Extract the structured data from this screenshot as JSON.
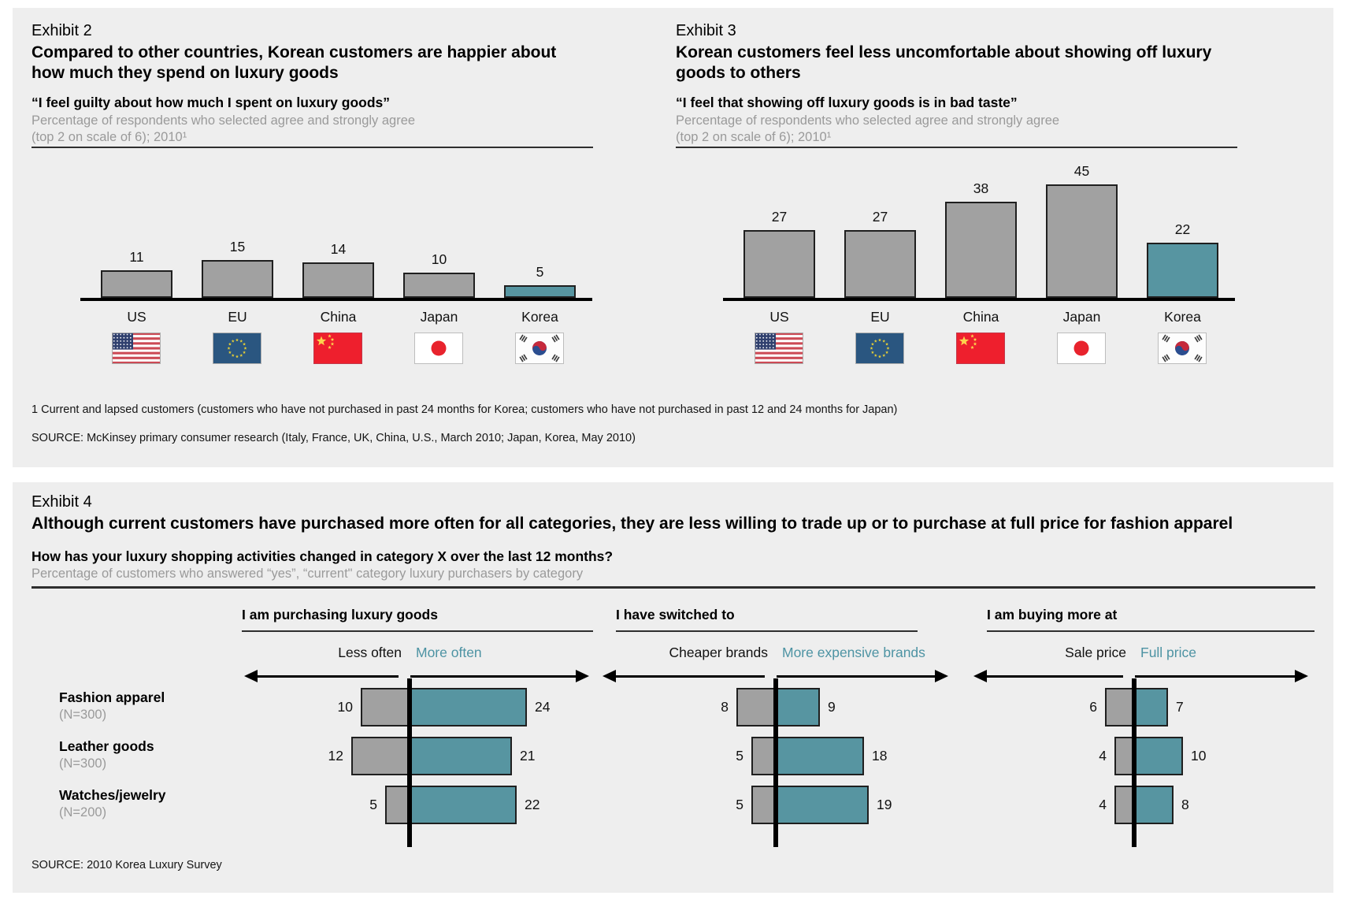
{
  "page": {
    "background": "#ffffff",
    "panel_background": "#eeeeee"
  },
  "colors": {
    "teal_accent": "#5795a1",
    "gray_bar": "#a1a1a1",
    "gray_text": "#9a9a9a",
    "teal_text": "#4d93a3"
  },
  "exhibit2": {
    "label": "Exhibit 2",
    "title": "Compared to other countries, Korean customers are happier about how much they spend on luxury goods",
    "quote": "“I feel guilty about how much I spent on luxury goods”",
    "subtitle_line1": "Percentage of respondents who selected agree and strongly agree",
    "subtitle_line2": "(top 2 on scale of 6); 2010¹"
  },
  "exhibit3": {
    "label": "Exhibit 3",
    "title": "Korean customers feel less uncomfortable about showing off luxury goods to others",
    "quote": "“I feel that showing off luxury goods is in bad taste”",
    "subtitle_line1": "Percentage of respondents who selected agree and strongly agree",
    "subtitle_line2": "(top 2 on scale of 6); 2010¹"
  },
  "footnote": "1 Current and lapsed customers (customers who have not purchased in past 24 months for Korea; customers who have not purchased in past 12 and 24 months for Japan)",
  "source_top": "SOURCE: McKinsey primary consumer research (Italy, France, UK, China, U.S., March 2010; Japan, Korea, May 2010)",
  "exhibit4": {
    "label": "Exhibit 4",
    "title": "Although current customers have purchased more often for all categories, they are less willing to trade up or to purchase at full price for fashion apparel",
    "question": "How has your luxury shopping activities changed in category X over the last 12 months?",
    "subtitle": "Percentage of customers who answered “yes”, “current\" category luxury purchasers by category",
    "groups": [
      {
        "header": "I am purchasing luxury goods",
        "left_label": "Less often",
        "right_label": "More often"
      },
      {
        "header": "I have switched to",
        "left_label": "Cheaper brands",
        "right_label": "More expensive brands"
      },
      {
        "header": "I am buying more at",
        "left_label": "Sale price",
        "right_label": "Full price"
      }
    ],
    "rows": [
      {
        "name": "Fashion apparel",
        "n": "(N=300)",
        "values": [
          [
            10,
            24
          ],
          [
            8,
            9
          ],
          [
            6,
            7
          ]
        ]
      },
      {
        "name": "Leather goods",
        "n": "(N=300)",
        "values": [
          [
            12,
            21
          ],
          [
            5,
            18
          ],
          [
            4,
            10
          ]
        ]
      },
      {
        "name": "Watches/jewelry",
        "n": "(N=200)",
        "values": [
          [
            5,
            22
          ],
          [
            5,
            19
          ],
          [
            4,
            8
          ]
        ]
      }
    ]
  },
  "source_bottom": "SOURCE: 2010 Korea Luxury Survey",
  "chart_data": [
    {
      "type": "bar",
      "exhibit": "Exhibit 2",
      "title": "“I feel guilty about how much I spent on luxury goods”",
      "subtitle": "Percentage of respondents who selected agree and strongly agree (top 2 on scale of 6); 2010",
      "categories": [
        "US",
        "EU",
        "China",
        "Japan",
        "Korea"
      ],
      "values": [
        11,
        15,
        14,
        10,
        5
      ],
      "highlight": "Korea",
      "bar_color": "#a1a1a1",
      "highlight_color": "#5795a1",
      "flags": [
        "us-flag-icon",
        "eu-flag-icon",
        "china-flag-icon",
        "japan-flag-icon",
        "korea-flag-icon"
      ],
      "data_labels": true,
      "axis_style": "baseline-only",
      "ylim": [
        0,
        50
      ]
    },
    {
      "type": "bar",
      "exhibit": "Exhibit 3",
      "title": "“I feel that showing off luxury goods is in bad taste”",
      "subtitle": "Percentage of respondents who selected agree and strongly agree (top 2 on scale of 6); 2010",
      "categories": [
        "US",
        "EU",
        "China",
        "Japan",
        "Korea"
      ],
      "values": [
        27,
        27,
        38,
        45,
        22
      ],
      "highlight": "Korea",
      "bar_color": "#a1a1a1",
      "highlight_color": "#5795a1",
      "flags": [
        "us-flag-icon",
        "eu-flag-icon",
        "china-flag-icon",
        "japan-flag-icon",
        "korea-flag-icon"
      ],
      "data_labels": true,
      "axis_style": "baseline-only",
      "ylim": [
        0,
        50
      ]
    },
    {
      "type": "bar",
      "subtype": "diverging",
      "exhibit": "Exhibit 4",
      "title": "How has your luxury shopping activities changed in category X over the last 12 months?",
      "categories": [
        "Fashion apparel (N=300)",
        "Leather goods (N=300)",
        "Watches/jewelry (N=200)"
      ],
      "series": [
        {
          "name": "Less often",
          "group": "I am purchasing luxury goods",
          "direction": "left",
          "color": "#a1a1a1",
          "values": [
            10,
            12,
            5
          ]
        },
        {
          "name": "More often",
          "group": "I am purchasing luxury goods",
          "direction": "right",
          "color": "#5795a1",
          "values": [
            24,
            21,
            22
          ]
        },
        {
          "name": "Cheaper brands",
          "group": "I have switched to",
          "direction": "left",
          "color": "#a1a1a1",
          "values": [
            8,
            5,
            5
          ]
        },
        {
          "name": "More expensive brands",
          "group": "I have switched to",
          "direction": "right",
          "color": "#5795a1",
          "values": [
            9,
            18,
            19
          ]
        },
        {
          "name": "Sale price",
          "group": "I am buying more at",
          "direction": "left",
          "color": "#a1a1a1",
          "values": [
            6,
            4,
            4
          ]
        },
        {
          "name": "Full price",
          "group": "I am buying more at",
          "direction": "right",
          "color": "#5795a1",
          "values": [
            7,
            10,
            8
          ]
        }
      ],
      "data_labels": true
    }
  ]
}
